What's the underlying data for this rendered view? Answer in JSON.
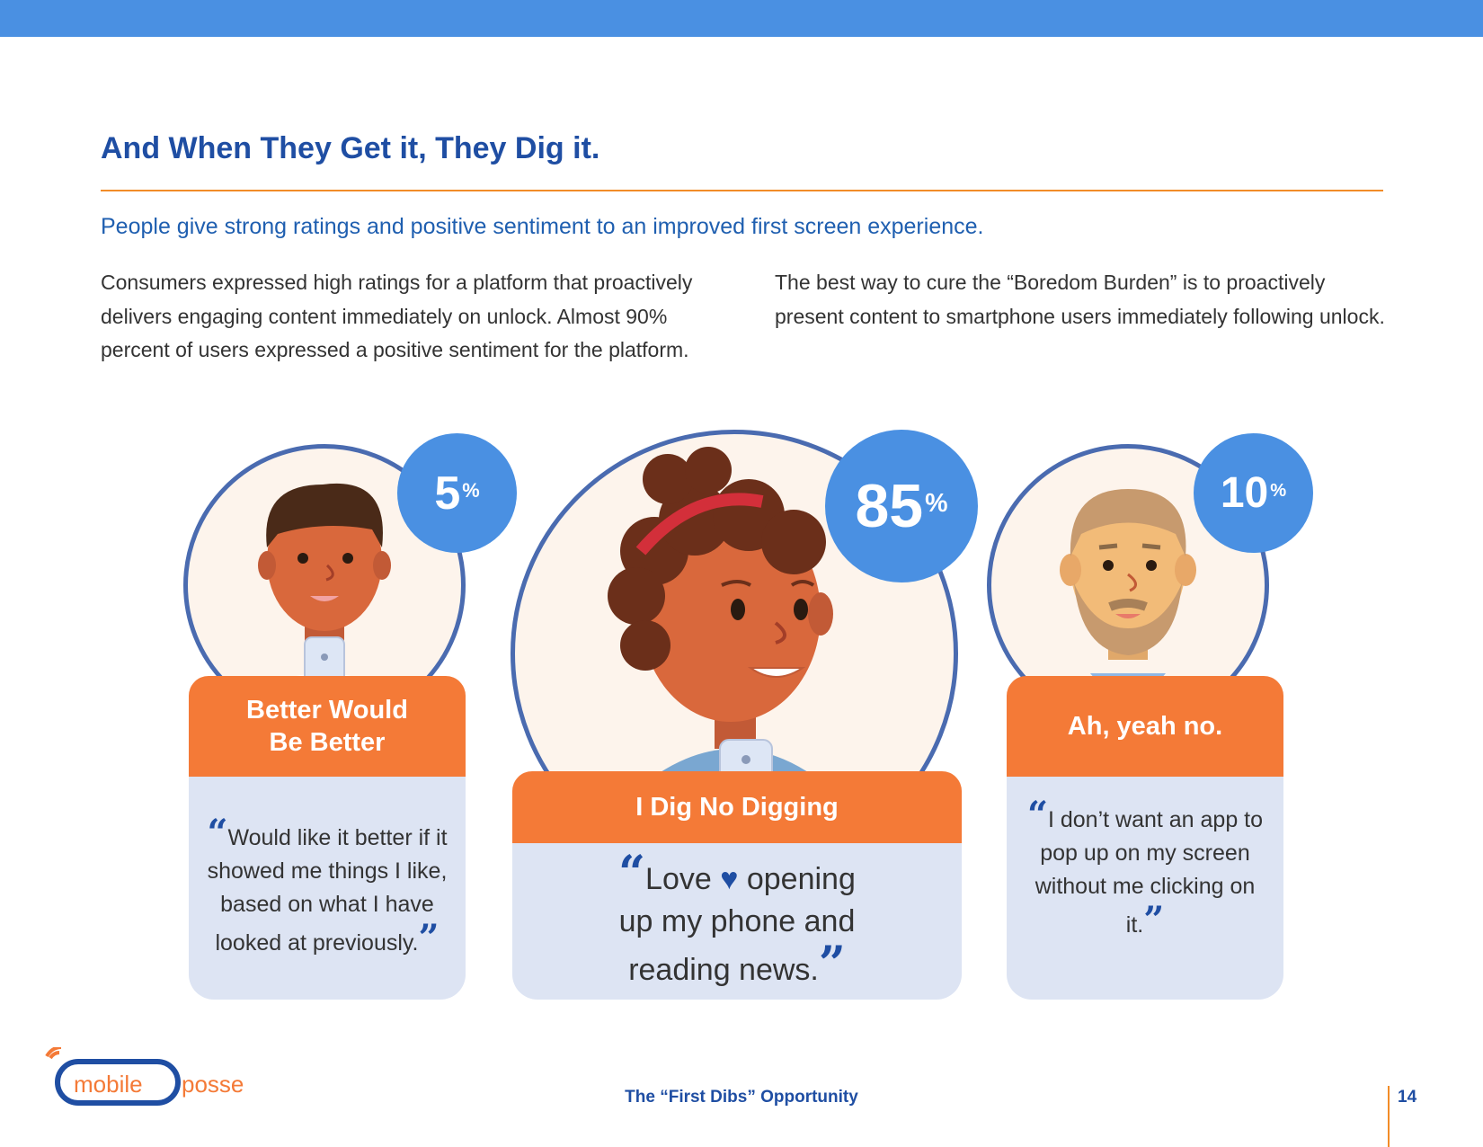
{
  "header": {
    "title": "And When They Get it, They Dig it.",
    "subtitle": "People give strong ratings and positive sentiment to an improved first screen experience."
  },
  "body": {
    "left_paragraph": "Consumers expressed high ratings for a platform that proactively delivers engaging content immediately on unlock. Almost 90% percent of users expressed a positive sentiment for the platform.",
    "right_paragraph": "The best way to cure the “Boredom Burden” is to proactively present content to smartphone users immediately following unlock."
  },
  "cards": [
    {
      "percent": "5",
      "percent_symbol": "%",
      "label_line1": "Better Would",
      "label_line2": "Be Better",
      "quote_open": "“",
      "quote": "Would like it better if it showed me things I like, based on what I have looked at previously.",
      "quote_close": "”"
    },
    {
      "percent": "85",
      "percent_symbol": "%",
      "label": "I Dig No Digging",
      "quote_open": "“",
      "quote_part1": "Love",
      "heart": "♥",
      "quote_part2": "opening up my phone and reading news.",
      "quote_close": "”"
    },
    {
      "percent": "10",
      "percent_symbol": "%",
      "label": "Ah, yeah no.",
      "quote_open": "“",
      "quote": "I don’t want an app to pop up on my screen without me clicking on it.",
      "quote_close": "”"
    }
  ],
  "footer": {
    "logo_word1": "mobile",
    "logo_word2": "posse",
    "center_text": "The “First Dibs” Opportunity",
    "page_number": "14"
  },
  "colors": {
    "primary_blue": "#1f4ea3",
    "accent_blue": "#4a90e2",
    "orange": "#f47a37",
    "quote_bg": "#dde4f3"
  }
}
